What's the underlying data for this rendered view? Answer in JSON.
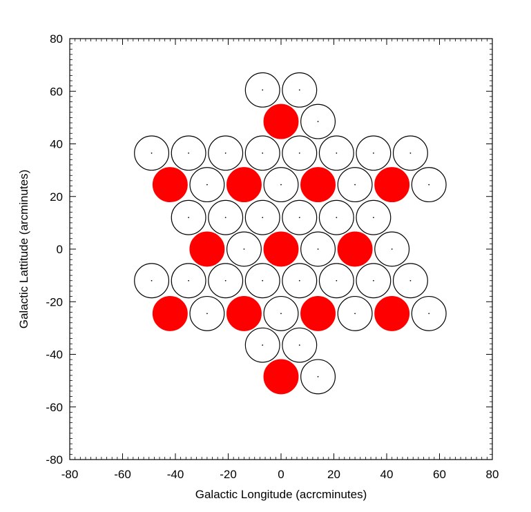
{
  "chart_data": {
    "type": "scatter",
    "title": "",
    "xlabel": "Galactic Longitude (acrcminutes)",
    "ylabel": "Galactic Lattitude (arcminutes)",
    "xlim": [
      -80,
      80
    ],
    "ylim": [
      -80,
      80
    ],
    "xticks": [
      -80,
      -60,
      -40,
      -20,
      0,
      20,
      40,
      60,
      80
    ],
    "yticks": [
      -80,
      -60,
      -40,
      -20,
      0,
      20,
      40,
      60,
      80
    ],
    "x_tick_labels": [
      "-80",
      "-60",
      "-40",
      "-20",
      "0",
      "20",
      "40",
      "60",
      "80"
    ],
    "y_tick_labels": [
      "-80",
      "-60",
      "-40",
      "-20",
      "0",
      "20",
      "40",
      "60",
      "80"
    ],
    "grid": false,
    "marker": "circle",
    "circle_radius": 6.5,
    "colors": {
      "filled": "#ff0000",
      "open_fill": "#ffffff",
      "edge": "#000000"
    },
    "series": [
      {
        "filled": true,
        "points": [
          [
            0,
            48.5
          ],
          [
            -42,
            24.5
          ],
          [
            -14,
            24.5
          ],
          [
            14,
            24.5
          ],
          [
            42,
            24.5
          ],
          [
            -28,
            0
          ],
          [
            0,
            0
          ],
          [
            28,
            0
          ],
          [
            -42,
            -24.5
          ],
          [
            -14,
            -24.5
          ],
          [
            14,
            -24.5
          ],
          [
            42,
            -24.5
          ],
          [
            0,
            -48.5
          ]
        ]
      },
      {
        "filled": false,
        "points": [
          [
            -7,
            60.5
          ],
          [
            7,
            60.5
          ],
          [
            14,
            48.5
          ],
          [
            -49,
            36.5
          ],
          [
            -35,
            36.5
          ],
          [
            -21,
            36.5
          ],
          [
            -7,
            36.5
          ],
          [
            7,
            36.5
          ],
          [
            21,
            36.5
          ],
          [
            35,
            36.5
          ],
          [
            49,
            36.5
          ],
          [
            -28,
            24.5
          ],
          [
            0,
            24.5
          ],
          [
            28,
            24.5
          ],
          [
            56,
            24.5
          ],
          [
            -35,
            12
          ],
          [
            -21,
            12
          ],
          [
            -7,
            12
          ],
          [
            7,
            12
          ],
          [
            21,
            12
          ],
          [
            35,
            12
          ],
          [
            -14,
            0
          ],
          [
            14,
            0
          ],
          [
            42,
            0
          ],
          [
            -49,
            -12
          ],
          [
            -35,
            -12
          ],
          [
            -21,
            -12
          ],
          [
            -7,
            -12
          ],
          [
            7,
            -12
          ],
          [
            21,
            -12
          ],
          [
            35,
            -12
          ],
          [
            49,
            -12
          ],
          [
            -28,
            -24.5
          ],
          [
            0,
            -24.5
          ],
          [
            28,
            -24.5
          ],
          [
            56,
            -24.5
          ],
          [
            -7,
            -36.5
          ],
          [
            7,
            -36.5
          ],
          [
            14,
            -48.5
          ]
        ]
      }
    ]
  }
}
